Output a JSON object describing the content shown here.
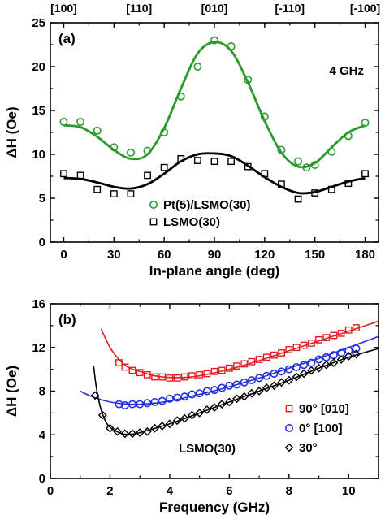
{
  "chart_data": [
    {
      "type": "scatter",
      "panel_label": "(a)",
      "annotation": "4 GHz",
      "xlabel": "In-plane angle (deg)",
      "ylabel": "ΔH (Oe)",
      "xlim": [
        -8,
        188
      ],
      "ylim": [
        0,
        25
      ],
      "x_ticks": [
        "0",
        "30",
        "60",
        "90",
        "120",
        "150",
        "180"
      ],
      "y_ticks": [
        "0",
        "5",
        "10",
        "15",
        "20",
        "25"
      ],
      "top_axis_labels": [
        "[100]",
        "[110]",
        "[010]",
        "[-110]",
        "[-100]"
      ],
      "legend_position": "lower-right",
      "series": [
        {
          "name": "Pt(5)/LSMO(30)",
          "marker": "circle",
          "color": "#2a9a2a",
          "x": [
            0,
            10,
            20,
            30,
            40,
            50,
            60,
            70,
            80,
            90,
            100,
            110,
            120,
            130,
            140,
            145,
            150,
            160,
            170,
            180
          ],
          "y": [
            13.7,
            13.7,
            12.7,
            10.8,
            10.2,
            10.4,
            12.5,
            16.6,
            20.0,
            23.0,
            22.3,
            18.5,
            14.3,
            10.5,
            9.2,
            8.5,
            8.8,
            10.3,
            12.1,
            13.6
          ],
          "fit": {
            "x": [
              0,
              10,
              20,
              30,
              40,
              50,
              60,
              70,
              80,
              90,
              100,
              110,
              120,
              130,
              140,
              150,
              160,
              170,
              180
            ],
            "y": [
              13.3,
              13.1,
              12.0,
              10.5,
              9.5,
              10.0,
              13.0,
              17.5,
              21.5,
              22.8,
              21.8,
              18.2,
              13.8,
              10.2,
              8.6,
              9.0,
              10.8,
              12.5,
              13.3
            ]
          }
        },
        {
          "name": "LSMO(30)",
          "marker": "square",
          "color": "#000000",
          "x": [
            0,
            10,
            20,
            30,
            40,
            50,
            60,
            70,
            80,
            90,
            100,
            110,
            120,
            130,
            140,
            150,
            160,
            170,
            180
          ],
          "y": [
            7.8,
            7.6,
            6.0,
            5.5,
            5.5,
            7.6,
            8.5,
            9.5,
            9.3,
            9.2,
            9.2,
            8.6,
            7.8,
            6.6,
            4.9,
            5.6,
            6.0,
            6.7,
            7.8
          ],
          "fit": {
            "x": [
              0,
              10,
              20,
              30,
              40,
              50,
              60,
              70,
              80,
              90,
              100,
              110,
              120,
              130,
              140,
              150,
              160,
              170,
              180
            ],
            "y": [
              7.3,
              7.2,
              6.8,
              6.3,
              6.1,
              6.6,
              7.8,
              9.2,
              10.0,
              10.1,
              9.8,
              8.7,
              7.4,
              6.3,
              5.6,
              5.7,
              6.3,
              6.9,
              7.3
            ]
          }
        }
      ]
    },
    {
      "type": "scatter",
      "panel_label": "(b)",
      "annotation": "LSMO(30)",
      "xlabel": "Frequency (GHz)",
      "ylabel": "ΔH (Oe)",
      "xlim": [
        0,
        11
      ],
      "ylim": [
        0,
        16
      ],
      "x_ticks": [
        "0",
        "2",
        "4",
        "6",
        "8",
        "10"
      ],
      "y_ticks": [
        "0",
        "4",
        "8",
        "12",
        "16"
      ],
      "legend_position": "lower-right",
      "series": [
        {
          "name": "90° [010]",
          "marker": "square",
          "color": "#e02020",
          "x": [
            2.3,
            2.5,
            2.75,
            3.0,
            3.25,
            3.5,
            3.75,
            4.0,
            4.25,
            4.5,
            4.75,
            5.0,
            5.25,
            5.5,
            5.75,
            6.0,
            6.25,
            6.5,
            6.75,
            7.0,
            7.25,
            7.5,
            7.75,
            8.0,
            8.25,
            8.5,
            8.75,
            9.0,
            9.25,
            9.5,
            9.75,
            10.0,
            10.25
          ],
          "y": [
            10.6,
            10.2,
            9.9,
            9.7,
            9.5,
            9.3,
            9.3,
            9.2,
            9.2,
            9.3,
            9.4,
            9.5,
            9.6,
            9.8,
            9.9,
            10.1,
            10.3,
            10.5,
            10.7,
            10.9,
            11.1,
            11.3,
            11.5,
            11.8,
            12.0,
            12.2,
            12.4,
            12.7,
            12.9,
            13.1,
            13.3,
            13.6,
            13.8
          ],
          "fit": {
            "x": [
              1.7,
              2.0,
              2.3,
              2.6,
              3.0,
              3.5,
              4.0,
              4.5,
              5.0,
              6.0,
              7.0,
              8.0,
              9.0,
              10.0,
              11.0
            ],
            "y": [
              13.7,
              12.0,
              10.9,
              10.2,
              9.8,
              9.4,
              9.25,
              9.25,
              9.4,
              10.0,
              10.8,
              11.7,
              12.6,
              13.5,
              14.4
            ]
          }
        },
        {
          "name": "0°   [100]",
          "marker": "circle",
          "color": "#2030e0",
          "x": [
            2.3,
            2.5,
            2.75,
            3.0,
            3.25,
            3.5,
            3.75,
            4.0,
            4.25,
            4.5,
            4.75,
            5.0,
            5.25,
            5.5,
            5.75,
            6.0,
            6.25,
            6.5,
            6.75,
            7.0,
            7.25,
            7.5,
            7.75,
            8.0,
            8.25,
            8.5,
            8.75,
            9.0,
            9.25,
            9.5,
            9.75,
            10.0,
            10.25
          ],
          "y": [
            6.8,
            6.7,
            6.8,
            6.8,
            6.9,
            7.0,
            7.1,
            7.3,
            7.4,
            7.5,
            7.7,
            7.8,
            8.0,
            8.1,
            8.3,
            8.5,
            8.6,
            8.8,
            9.0,
            9.2,
            9.4,
            9.6,
            9.8,
            10.0,
            10.2,
            10.4,
            10.6,
            10.9,
            11.1,
            11.3,
            11.5,
            11.7,
            11.9
          ],
          "fit": {
            "x": [
              1.0,
              1.3,
              1.6,
              2.0,
              2.4,
              3.0,
              3.5,
              4.0,
              5.0,
              6.0,
              7.0,
              8.0,
              9.0,
              10.0,
              11.0
            ],
            "y": [
              8.0,
              7.6,
              7.3,
              7.0,
              6.85,
              6.8,
              6.9,
              7.1,
              7.7,
              8.4,
              9.2,
              10.1,
              11.0,
              12.0,
              13.0
            ]
          }
        },
        {
          "name": "30°",
          "marker": "diamond",
          "color": "#000000",
          "x": [
            1.5,
            1.75,
            2.0,
            2.25,
            2.5,
            2.75,
            3.0,
            3.25,
            3.5,
            3.75,
            4.0,
            4.25,
            4.5,
            4.75,
            5.0,
            5.25,
            5.5,
            5.75,
            6.0,
            6.25,
            6.5,
            6.75,
            7.0,
            7.25,
            7.5,
            7.75,
            8.0,
            8.25,
            8.5,
            8.75,
            9.0,
            9.25,
            9.5,
            9.75,
            10.0,
            10.25
          ],
          "y": [
            7.6,
            5.8,
            4.6,
            4.3,
            4.1,
            4.1,
            4.2,
            4.3,
            4.6,
            4.8,
            5.0,
            5.3,
            5.5,
            5.8,
            6.0,
            6.3,
            6.5,
            6.8,
            7.0,
            7.3,
            7.5,
            7.8,
            8.0,
            8.3,
            8.5,
            8.8,
            9.0,
            9.3,
            9.6,
            9.9,
            10.1,
            10.4,
            10.6,
            10.9,
            11.2,
            11.4
          ],
          "fit": {
            "x": [
              1.45,
              1.55,
              1.7,
              1.9,
              2.1,
              2.4,
              2.7,
              3.0,
              4.0,
              5.0,
              6.0,
              7.0,
              8.0,
              9.0,
              10.0,
              11.0
            ],
            "y": [
              10.3,
              8.2,
              6.3,
              5.0,
              4.5,
              4.1,
              4.05,
              4.2,
              5.0,
              6.0,
              7.0,
              8.0,
              9.0,
              10.1,
              11.1,
              11.9
            ]
          }
        }
      ]
    }
  ]
}
